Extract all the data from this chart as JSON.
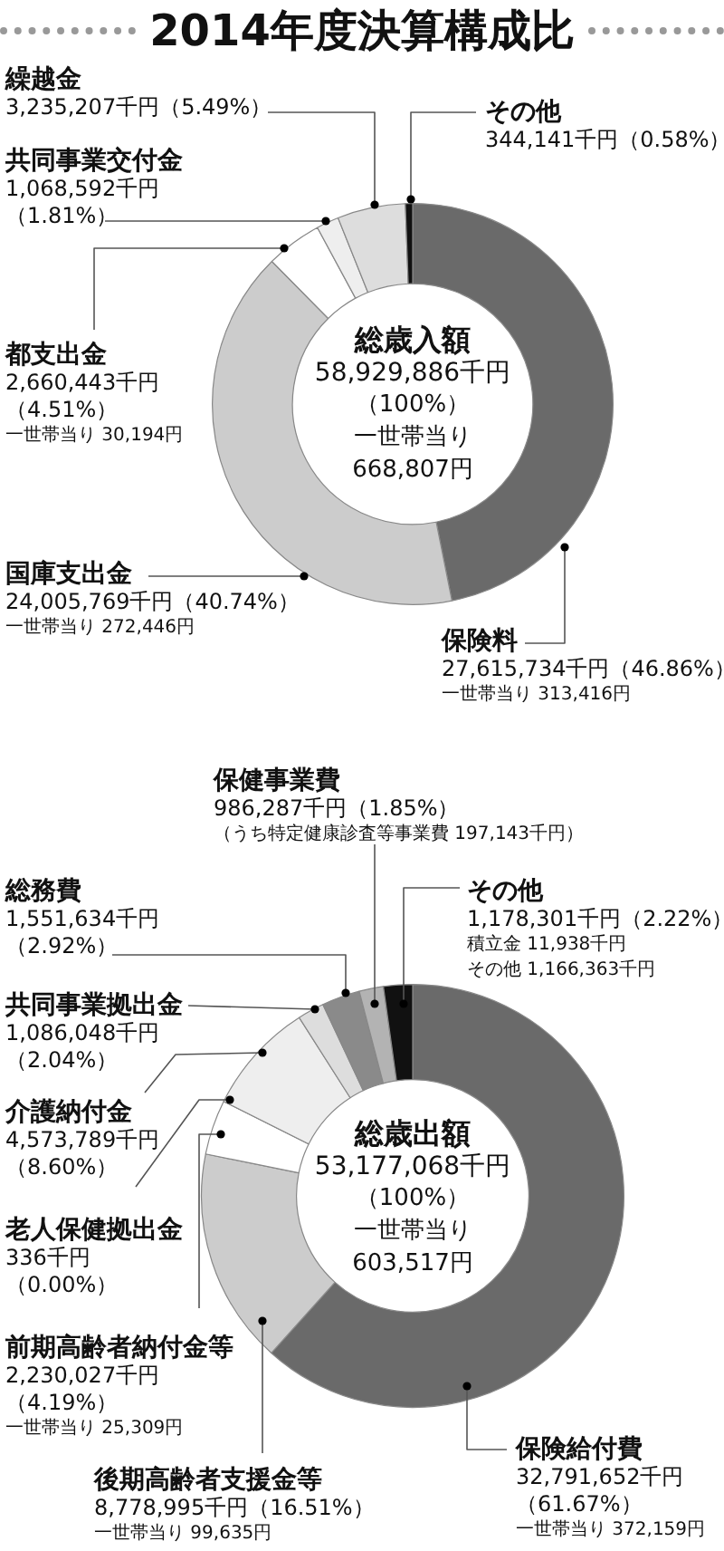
{
  "chart_data": [
    {
      "type": "donut",
      "title": "2014年度決算構成比",
      "categories": [
        "保険料",
        "国庫支出金",
        "都支出金",
        "共同事業交付金",
        "繰越金",
        "その他"
      ],
      "values": [
        27615734,
        24005769,
        2660443,
        1068592,
        3235207,
        344141
      ],
      "colors": [
        "#6a6a6a",
        "#cccccc",
        "#ffffff",
        "#eeeeee",
        "#dddddd",
        "#111111"
      ],
      "value_labels": [
        "27,615,734千円（46.86%）",
        "24,005,769千円（40.74%）",
        "2,660,443千円（4.51%）",
        "1,068,592千円（1.81%）",
        "3,235,207千円（5.49%）",
        "344,141千円（0.58%）"
      ],
      "annotations": [
        "総歳入額",
        "58,929,886千円",
        "（100%）",
        "一世帯当り",
        "668,807円",
        {
          "text": "一世帯当り 313,416円",
          "x": "保険料"
        },
        {
          "text": "一世帯当り 272,446円",
          "x": "国庫支出金"
        },
        {
          "text": "一世帯当り 30,194円",
          "x": "都支出金"
        }
      ]
    },
    {
      "type": "donut",
      "categories": [
        "保険給付費",
        "後期高齢者支援金等",
        "前期高齢者納付金等",
        "老人保健拠出金",
        "介護納付金",
        "共同事業拠出金",
        "総務費",
        "保健事業費",
        "その他"
      ],
      "values": [
        32791652,
        8778995,
        2230027,
        336,
        4573789,
        1086048,
        1551634,
        986287,
        1178301
      ],
      "colors": [
        "#6a6a6a",
        "#cccccc",
        "#ffffff",
        "#000000",
        "#eeeeee",
        "#dddddd",
        "#8a8a8a",
        "#b3b3b3",
        "#111111"
      ],
      "value_labels": [
        "32,791,652千円（61.67%）",
        "8,778,995千円（16.51%）",
        "2,230,027千円（4.19%）",
        "336千円（0.00%）",
        "4,573,789千円（8.60%）",
        "1,086,048千円（2.04%）",
        "1,551,634千円（2.92%）",
        "986,287千円（1.85%）",
        "1,178,301千円（2.22%）"
      ],
      "annotations": [
        "総歳出額",
        "53,177,068千円",
        "（100%）",
        "一世帯当り",
        "603,517円",
        {
          "text": "一世帯当り 372,159円",
          "x": "保険給付費"
        },
        {
          "text": "一世帯当り 99,635円",
          "x": "後期高齢者支援金等"
        },
        {
          "text": "一世帯当り 25,309円",
          "x": "前期高齢者納付金等"
        },
        {
          "text": "（うち特定健康診査等事業費 197,143千円）",
          "x": "保健事業費"
        },
        {
          "text": "積立金 11,938千円",
          "x": "その他"
        },
        {
          "text": "その他 1,166,363千円",
          "x": "その他"
        }
      ]
    }
  ]
}
